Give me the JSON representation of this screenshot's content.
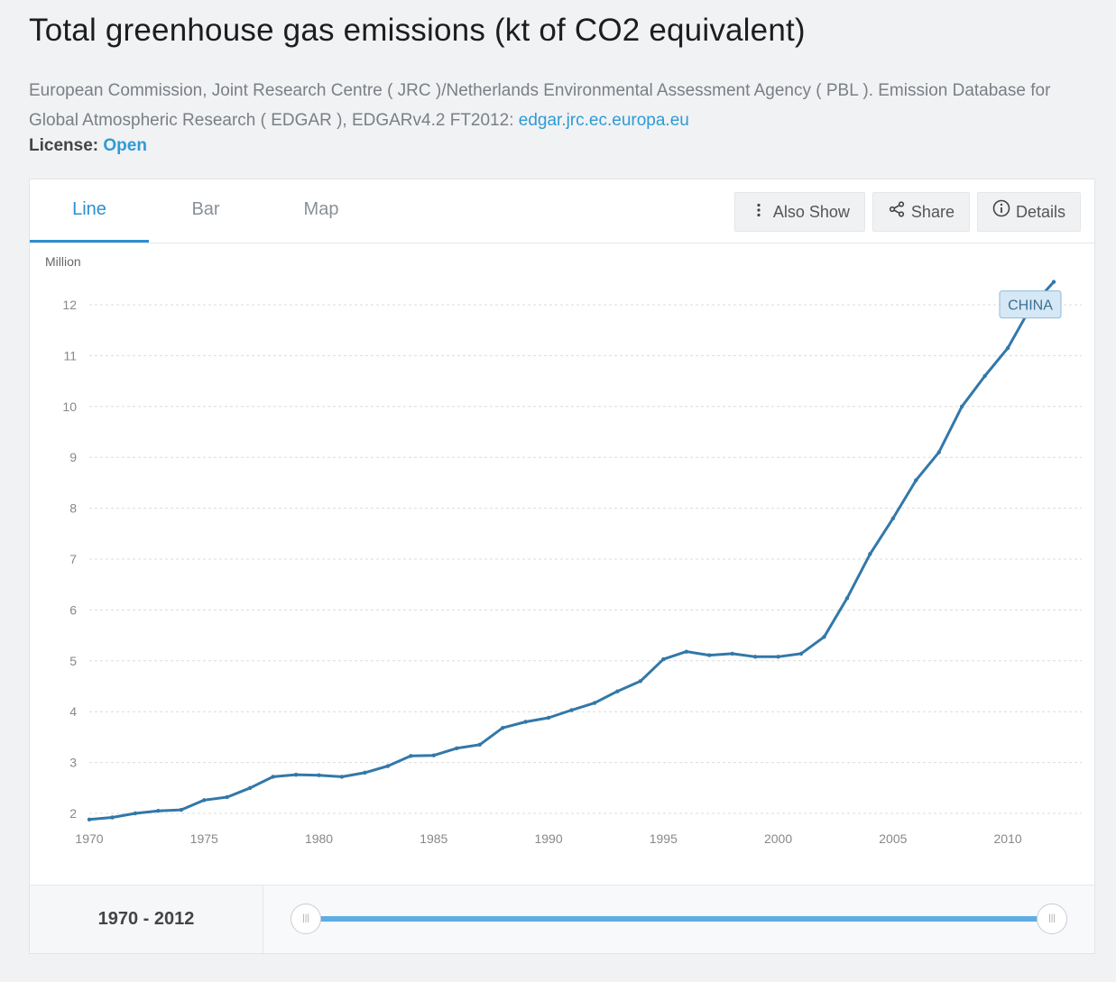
{
  "page": {
    "title": "Total greenhouse gas emissions (kt of CO2 equivalent)",
    "source_text": "European Commission, Joint Research Centre ( JRC )/Netherlands Environmental Assessment Agency ( PBL ). Emission Database for Global Atmospheric Research ( EDGAR ), EDGARv4.2 FT2012: ",
    "source_link": "edgar.jrc.ec.europa.eu",
    "license_label": "License:",
    "license_value": "Open"
  },
  "tabs": [
    {
      "label": "Line",
      "active": true
    },
    {
      "label": "Bar",
      "active": false
    },
    {
      "label": "Map",
      "active": false
    }
  ],
  "actions": {
    "also_show": "Also Show",
    "share": "Share",
    "details": "Details"
  },
  "range": {
    "label": "1970 - 2012"
  },
  "colors": {
    "line": "#3278a8",
    "accent": "#2d8fd0",
    "label_bg": "#d6e8f5"
  },
  "chart_data": {
    "type": "line",
    "ylabel": "Million",
    "xlim": [
      1970,
      2012
    ],
    "ylim": [
      2,
      12
    ],
    "x_ticks": [
      1970,
      1975,
      1980,
      1985,
      1990,
      1995,
      2000,
      2005,
      2010
    ],
    "y_ticks": [
      2,
      3,
      4,
      5,
      6,
      7,
      8,
      9,
      10,
      11,
      12
    ],
    "grid": true,
    "series": [
      {
        "name": "CHINA",
        "x": [
          1970,
          1971,
          1972,
          1973,
          1974,
          1975,
          1976,
          1977,
          1978,
          1979,
          1980,
          1981,
          1982,
          1983,
          1984,
          1985,
          1986,
          1987,
          1988,
          1989,
          1990,
          1991,
          1992,
          1993,
          1994,
          1995,
          1996,
          1997,
          1998,
          1999,
          2000,
          2001,
          2002,
          2003,
          2004,
          2005,
          2006,
          2007,
          2008,
          2009,
          2010,
          2011,
          2012
        ],
        "values": [
          1.88,
          1.92,
          2.0,
          2.05,
          2.07,
          2.26,
          2.32,
          2.5,
          2.72,
          2.76,
          2.75,
          2.72,
          2.8,
          2.93,
          3.13,
          3.14,
          3.28,
          3.35,
          3.68,
          3.8,
          3.88,
          4.03,
          4.17,
          4.4,
          4.6,
          5.03,
          5.18,
          5.11,
          5.14,
          5.08,
          5.08,
          5.14,
          5.47,
          6.23,
          7.1,
          7.8,
          8.55,
          9.1,
          10.0,
          10.6,
          11.15,
          11.95,
          12.45
        ]
      }
    ]
  }
}
